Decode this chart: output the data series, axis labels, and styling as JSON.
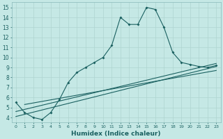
{
  "xlabel": "Humidex (Indice chaleur)",
  "background_color": "#c5e8e5",
  "grid_color": "#afd4d0",
  "line_color": "#1a6060",
  "xlim": [
    -0.5,
    23.5
  ],
  "ylim": [
    3.5,
    15.5
  ],
  "yticks": [
    4,
    5,
    6,
    7,
    8,
    9,
    10,
    11,
    12,
    13,
    14,
    15
  ],
  "xticks": [
    0,
    1,
    2,
    3,
    4,
    5,
    6,
    7,
    8,
    9,
    10,
    11,
    12,
    13,
    14,
    15,
    16,
    17,
    18,
    19,
    20,
    21,
    22,
    23
  ],
  "series1_x": [
    0,
    1,
    2,
    3,
    4,
    5,
    6,
    7,
    8,
    9,
    10,
    11,
    12,
    13,
    14,
    15,
    16,
    17,
    18,
    19,
    20,
    21,
    22,
    23
  ],
  "series1_y": [
    5.5,
    4.5,
    4.0,
    3.8,
    4.5,
    5.8,
    7.5,
    8.5,
    9.0,
    9.5,
    10.0,
    11.2,
    14.0,
    13.3,
    13.3,
    15.0,
    14.8,
    13.0,
    10.5,
    9.5,
    9.3,
    9.1,
    9.0,
    9.2
  ],
  "series2_x": [
    0,
    23
  ],
  "series2_y": [
    4.1,
    9.1
  ],
  "series3_x": [
    0,
    23
  ],
  "series3_y": [
    4.6,
    9.4
  ],
  "series4_x": [
    1,
    23
  ],
  "series4_y": [
    5.3,
    8.7
  ]
}
